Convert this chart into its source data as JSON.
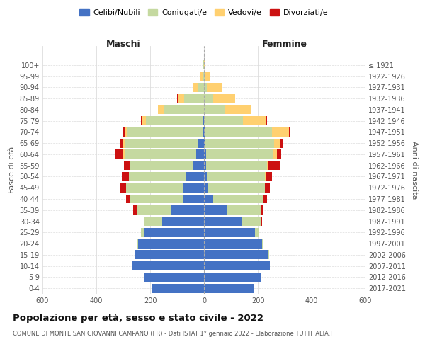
{
  "age_groups": [
    "0-4",
    "5-9",
    "10-14",
    "15-19",
    "20-24",
    "25-29",
    "30-34",
    "35-39",
    "40-44",
    "45-49",
    "50-54",
    "55-59",
    "60-64",
    "65-69",
    "70-74",
    "75-79",
    "80-84",
    "85-89",
    "90-94",
    "95-99",
    "100+"
  ],
  "birth_years": [
    "2017-2021",
    "2012-2016",
    "2007-2011",
    "2002-2006",
    "1997-2001",
    "1992-1996",
    "1987-1991",
    "1982-1986",
    "1977-1981",
    "1972-1976",
    "1967-1971",
    "1962-1966",
    "1957-1961",
    "1952-1956",
    "1947-1951",
    "1942-1946",
    "1937-1941",
    "1932-1936",
    "1927-1931",
    "1922-1926",
    "≤ 1921"
  ],
  "maschi_celibi": [
    195,
    220,
    265,
    255,
    245,
    225,
    155,
    125,
    80,
    80,
    65,
    40,
    30,
    20,
    5,
    2,
    0,
    0,
    0,
    0,
    0
  ],
  "maschi_coniugati": [
    0,
    0,
    0,
    2,
    3,
    10,
    65,
    125,
    195,
    210,
    215,
    235,
    265,
    275,
    280,
    215,
    150,
    75,
    25,
    5,
    2
  ],
  "maschi_vedovi": [
    0,
    0,
    0,
    0,
    0,
    0,
    0,
    0,
    0,
    0,
    0,
    0,
    5,
    5,
    10,
    15,
    22,
    22,
    15,
    8,
    3
  ],
  "maschi_divorziati": [
    0,
    0,
    0,
    0,
    0,
    0,
    0,
    12,
    14,
    22,
    25,
    22,
    30,
    10,
    8,
    3,
    0,
    2,
    0,
    0,
    0
  ],
  "femmine_celibi": [
    185,
    210,
    245,
    240,
    215,
    190,
    140,
    85,
    35,
    15,
    10,
    8,
    8,
    5,
    2,
    0,
    0,
    0,
    0,
    0,
    0
  ],
  "femmine_coniugati": [
    0,
    0,
    0,
    2,
    5,
    15,
    70,
    125,
    185,
    210,
    215,
    225,
    250,
    255,
    250,
    145,
    80,
    35,
    10,
    2,
    0
  ],
  "femmine_vedovi": [
    0,
    0,
    0,
    0,
    0,
    0,
    0,
    0,
    0,
    0,
    5,
    5,
    12,
    22,
    65,
    85,
    95,
    80,
    55,
    22,
    5
  ],
  "femmine_divorziati": [
    0,
    0,
    0,
    0,
    0,
    0,
    5,
    12,
    15,
    20,
    22,
    45,
    18,
    12,
    5,
    3,
    2,
    0,
    0,
    0,
    0
  ],
  "color_celibi": "#4472c4",
  "color_coniugati": "#c5d9a0",
  "color_vedovi": "#ffd070",
  "color_divorziati": "#cc1111",
  "title": "Popolazione per età, sesso e stato civile - 2022",
  "subtitle": "COMUNE DI MONTE SAN GIOVANNI CAMPANO (FR) - Dati ISTAT 1° gennaio 2022 - Elaborazione TUTTITALIA.IT",
  "ylabel_left": "Fasce di età",
  "ylabel_right": "Anni di nascita",
  "xlabel_left": "Maschi",
  "xlabel_right": "Femmine",
  "xlim": 600,
  "background_color": "#ffffff",
  "grid_color": "#dddddd",
  "center_line_color": "#aaaaaa"
}
